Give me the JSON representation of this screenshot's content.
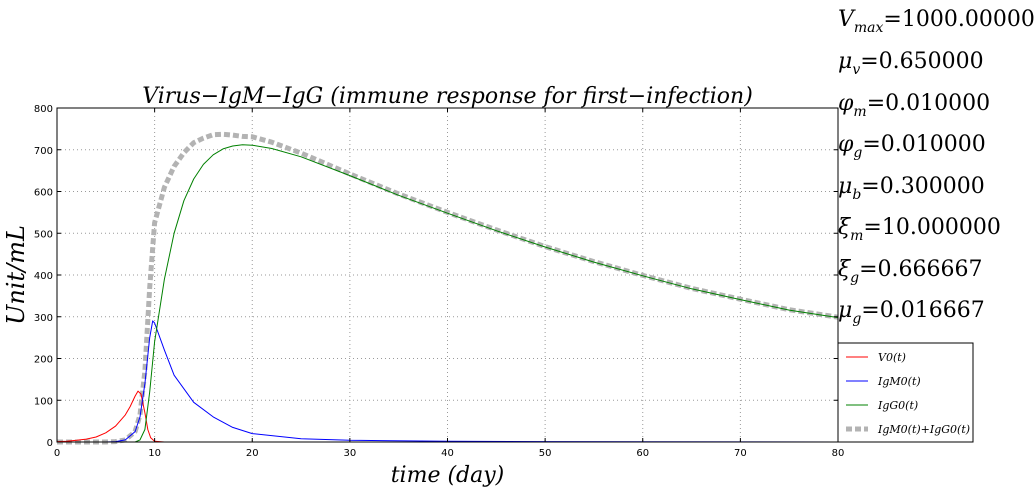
{
  "chart_data": {
    "type": "line",
    "title": "Virus−IgM−IgG (immune response for first−infection)",
    "xlabel": "time (day)",
    "ylabel": "Unit/mL",
    "xlim": [
      0,
      80
    ],
    "ylim": [
      0,
      800
    ],
    "xticks": [
      "0",
      "10",
      "20",
      "30",
      "40",
      "50",
      "60",
      "70",
      "80"
    ],
    "yticks": [
      "0",
      "100",
      "200",
      "300",
      "400",
      "500",
      "600",
      "700",
      "800"
    ],
    "grid": true,
    "legend_position": "lower-right",
    "parameters": [
      "Vmax=1000.000000",
      "μv=0.650000",
      "φm=0.010000",
      "φg=0.010000",
      "μb=0.300000",
      "ξm=10.000000",
      "ξg=0.666667",
      "μg=0.016667"
    ],
    "series": [
      {
        "name": "V0(t)",
        "color": "#ff0000",
        "style": "solid",
        "x": [
          0,
          1,
          2,
          3,
          4,
          5,
          6,
          7,
          7.5,
          8,
          8.3,
          8.6,
          9,
          9.3,
          9.6,
          10,
          11,
          15,
          80
        ],
        "y": [
          1,
          2,
          4,
          7,
          12,
          22,
          38,
          65,
          85,
          110,
          122,
          115,
          70,
          30,
          10,
          2,
          0,
          0,
          0
        ]
      },
      {
        "name": "IgM0(t)",
        "color": "#0000ff",
        "style": "solid",
        "x": [
          0,
          5,
          6,
          7,
          8,
          8.5,
          9,
          9.5,
          9.8,
          10,
          11,
          12,
          14,
          16,
          18,
          20,
          25,
          30,
          40,
          50,
          80
        ],
        "y": [
          0,
          0,
          1,
          5,
          25,
          60,
          140,
          250,
          290,
          285,
          220,
          160,
          95,
          60,
          35,
          20,
          8,
          4,
          2,
          1,
          0
        ]
      },
      {
        "name": "IgG0(t)",
        "color": "#008000",
        "style": "solid",
        "x": [
          0,
          8,
          8.5,
          9,
          9.5,
          10,
          11,
          12,
          13,
          14,
          15,
          16,
          17,
          18,
          19,
          20,
          22,
          25,
          30,
          35,
          40,
          45,
          50,
          55,
          60,
          65,
          70,
          75,
          80
        ],
        "y": [
          0,
          0,
          5,
          30,
          120,
          240,
          390,
          500,
          578,
          630,
          665,
          688,
          702,
          709,
          712,
          711,
          703,
          683,
          638,
          591,
          548,
          506,
          467,
          431,
          398,
          367,
          341,
          316,
          298
        ]
      },
      {
        "name": "IgM0(t)+IgG0(t)",
        "color": "#b3b3b3",
        "style": "dashed-thick",
        "x": [
          0,
          5,
          6,
          7,
          8,
          8.5,
          9,
          9.5,
          10,
          11,
          12,
          13,
          14,
          15,
          16,
          17,
          18,
          19,
          20,
          22,
          25,
          30,
          35,
          40,
          45,
          50,
          55,
          60,
          65,
          70,
          75,
          80
        ],
        "y": [
          0,
          0,
          1,
          5,
          25,
          65,
          170,
          370,
          525,
          610,
          660,
          693,
          717,
          728,
          736,
          737,
          735,
          732,
          731,
          718,
          692,
          642,
          594,
          550,
          508,
          468,
          432,
          399,
          368,
          342,
          317,
          299
        ]
      }
    ]
  }
}
